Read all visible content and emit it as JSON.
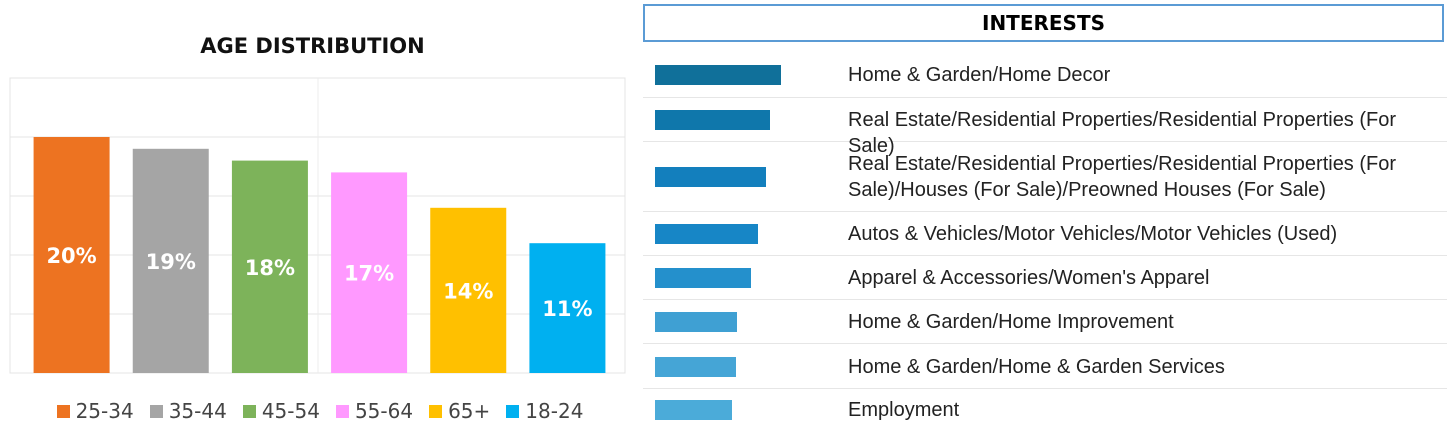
{
  "chart_data": {
    "type": "bar",
    "title": "AGE DISTRIBUTION",
    "categories": [
      "25-34",
      "35-44",
      "45-54",
      "55-64",
      "65+",
      "18-24"
    ],
    "values": [
      20,
      19,
      18,
      17,
      14,
      11
    ],
    "data_labels": [
      "20%",
      "19%",
      "18%",
      "17%",
      "14%",
      "11%"
    ],
    "colors": [
      "#ed7321",
      "#a5a5a5",
      "#7db35a",
      "#ff99ff",
      "#ffc000",
      "#00b0f0"
    ],
    "ylim": [
      0,
      25
    ],
    "grid": true,
    "legend": "bottom",
    "xlabel": "",
    "ylabel": ""
  },
  "interests": {
    "title": "INTERESTS",
    "items": [
      {
        "label": "Home & Garden/Home Decor",
        "value": 100,
        "color": "#10709a"
      },
      {
        "label": "Real Estate/Residential Properties/Residential Properties (For Sale)",
        "value": 91,
        "color": "#0f77ab"
      },
      {
        "label": "Real Estate/Residential Properties/Residential Properties (For Sale)/Houses (For Sale)/Preowned Houses (For Sale)",
        "value": 88,
        "color": "#137fbd"
      },
      {
        "label": "Autos & Vehicles/Motor Vehicles/Motor Vehicles (Used)",
        "value": 82,
        "color": "#1786c6"
      },
      {
        "label": "Apparel & Accessories/Women's Apparel",
        "value": 76,
        "color": "#2490cc"
      },
      {
        "label": "Home & Garden/Home Improvement",
        "value": 65,
        "color": "#3fa0d3"
      },
      {
        "label": "Home & Garden/Home & Garden Services",
        "value": 64,
        "color": "#45a5d6"
      },
      {
        "label": "Employment",
        "value": 61,
        "color": "#4babd9"
      }
    ]
  }
}
